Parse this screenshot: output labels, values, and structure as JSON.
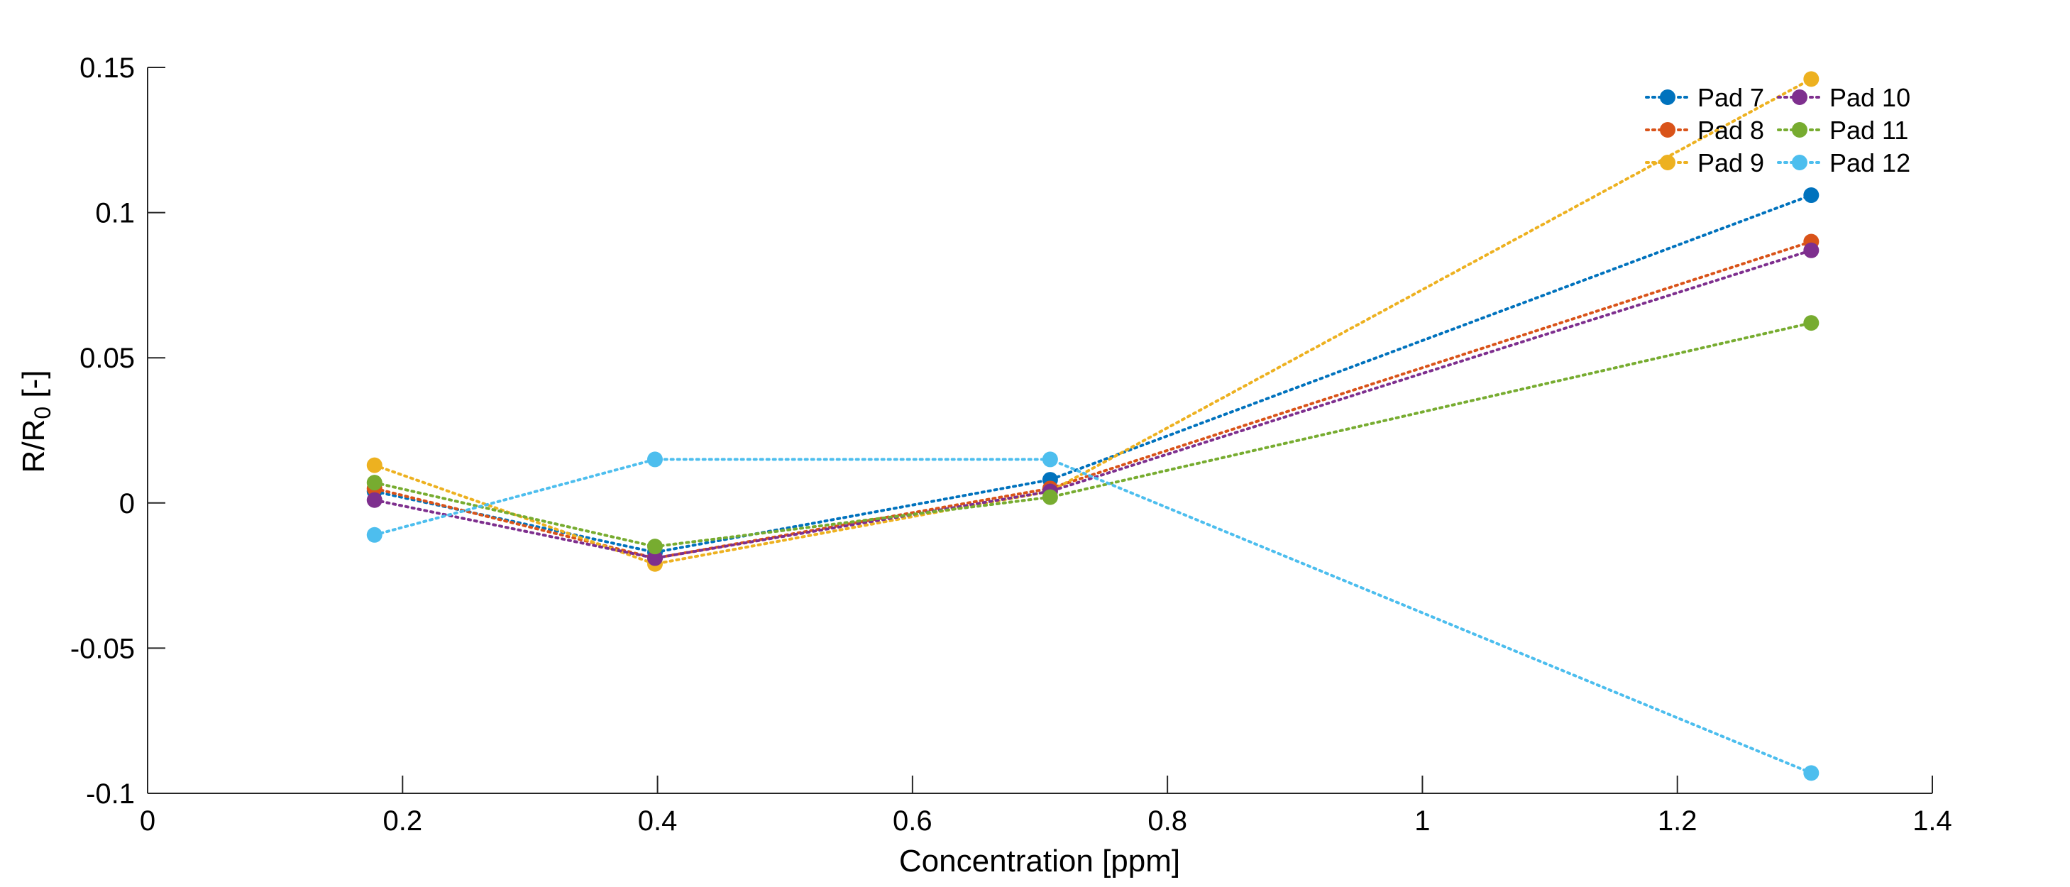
{
  "chart_data": {
    "type": "line",
    "xlabel": "Concentration [ppm]",
    "ylabel": {
      "base": "R/R",
      "sub": "0",
      "unit": " [-]"
    },
    "xlim": [
      0,
      1.4
    ],
    "ylim": [
      -0.1,
      0.15
    ],
    "xticks": [
      0,
      0.2,
      0.4,
      0.6,
      0.8,
      1,
      1.2,
      1.4
    ],
    "xtick_labels": [
      "0",
      "0.2",
      "0.4",
      "0.6",
      "0.8",
      "1",
      "1.2",
      "1.4"
    ],
    "yticks": [
      -0.1,
      -0.05,
      0,
      0.05,
      0.1,
      0.15
    ],
    "ytick_labels": [
      "-0.1",
      "-0.05",
      "0",
      "0.05",
      "0.1",
      "0.15"
    ],
    "grid": false,
    "legend_position": "top-right",
    "legend_columns": 2,
    "line_style": "dotted",
    "marker": "circle",
    "x": [
      0.178,
      0.398,
      0.708,
      1.305
    ],
    "series": [
      {
        "name": "Pad 7",
        "color": "#0072BD",
        "values": [
          0.004,
          -0.017,
          0.008,
          0.106
        ]
      },
      {
        "name": "Pad 8",
        "color": "#D95319",
        "values": [
          0.005,
          -0.019,
          0.005,
          0.09
        ]
      },
      {
        "name": "Pad 9",
        "color": "#EDB120",
        "values": [
          0.013,
          -0.021,
          0.004,
          0.146
        ]
      },
      {
        "name": "Pad 10",
        "color": "#7E2F8E",
        "values": [
          0.001,
          -0.019,
          0.004,
          0.087
        ]
      },
      {
        "name": "Pad 11",
        "color": "#77AC30",
        "values": [
          0.007,
          -0.015,
          0.002,
          0.062
        ]
      },
      {
        "name": "Pad 12",
        "color": "#4DBEEE",
        "values": [
          -0.011,
          0.015,
          0.015,
          -0.093
        ]
      }
    ]
  }
}
